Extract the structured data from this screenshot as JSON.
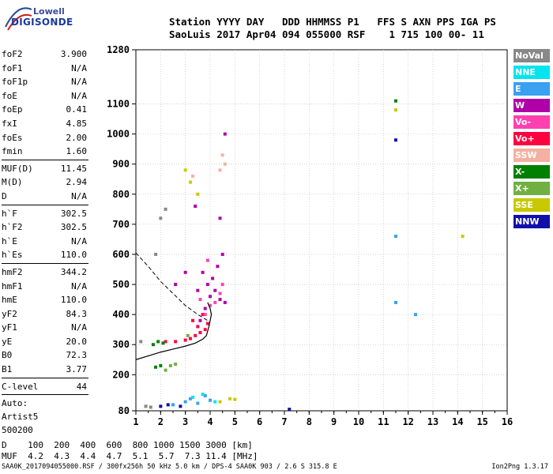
{
  "logo": {
    "line1": "Lowell",
    "line2": "DIGISONDE"
  },
  "header": {
    "line1": "Station YYYY DAY   DDD HHMMSS P1   FFS S AXN PPS IGA PS",
    "line2": "SaoLuis 2017 Apr04 094 055000 RSF    1 715 100 00- 11"
  },
  "params_group1": [
    {
      "label": "foF2",
      "value": "3.900"
    },
    {
      "label": "foF1",
      "value": "N/A"
    },
    {
      "label": "foF1p",
      "value": "N/A"
    },
    {
      "label": "foE",
      "value": "N/A"
    },
    {
      "label": "foEp",
      "value": "0.41"
    },
    {
      "label": "fxI",
      "value": "4.85"
    },
    {
      "label": "foEs",
      "value": "2.00"
    },
    {
      "label": "fmin",
      "value": "1.60"
    }
  ],
  "params_group2": [
    {
      "label": "MUF(D)",
      "value": "11.45"
    },
    {
      "label": "M(D)",
      "value": "2.94"
    },
    {
      "label": "D",
      "value": "N/A"
    }
  ],
  "params_group3": [
    {
      "label": "h`F",
      "value": "302.5"
    },
    {
      "label": "h`F2",
      "value": "302.5"
    },
    {
      "label": "h`E",
      "value": "N/A"
    },
    {
      "label": "h`Es",
      "value": "110.0"
    }
  ],
  "params_group4": [
    {
      "label": "hmF2",
      "value": "344.2"
    },
    {
      "label": "hmF1",
      "value": "N/A"
    },
    {
      "label": "hmE",
      "value": "110.0"
    },
    {
      "label": "yF2",
      "value": "84.3"
    },
    {
      "label": "yF1",
      "value": "N/A"
    },
    {
      "label": "yE",
      "value": "20.0"
    },
    {
      "label": "B0",
      "value": "72.3"
    },
    {
      "label": "B1",
      "value": "3.77"
    }
  ],
  "params_group5": [
    {
      "label": "C-level",
      "value": "44"
    }
  ],
  "auto": {
    "line1": "Auto:",
    "line2": "Artist5",
    "line3": "500200"
  },
  "legend": [
    {
      "label": "NoVal",
      "color": "#888888"
    },
    {
      "label": "NNE",
      "color": "#00e5ee"
    },
    {
      "label": "E",
      "color": "#3aa0f0"
    },
    {
      "label": "W",
      "color": "#b000a8"
    },
    {
      "label": "Vo-",
      "color": "#ff40b0"
    },
    {
      "label": "Vo+",
      "color": "#ff0040"
    },
    {
      "label": "SSW",
      "color": "#f4b0a0"
    },
    {
      "label": "X-",
      "color": "#008000"
    },
    {
      "label": "X+",
      "color": "#70b040"
    },
    {
      "label": "SSE",
      "color": "#c8c800"
    },
    {
      "label": "NNW",
      "color": "#1010a8"
    }
  ],
  "muf_table": {
    "line1": "D    100  200  400  600  800 1000 1500 3000 [km]",
    "line2": "MUF  4.2  4.3  4.4  4.7  5.1  5.7  7.3 11.4 [MHz]"
  },
  "footer": {
    "file": "SAA0K_2017094055000.RSF / 300fx256h 50 kHz 5.0 km / DPS-4 SAA0K 903 / 2.6 S 315.8 E",
    "version": "Ion2Png 1.3.17"
  },
  "chart_data": {
    "type": "scatter",
    "title": "",
    "xlabel": "",
    "ylabel": "",
    "xlim": [
      1,
      16
    ],
    "ylim": [
      80,
      1280
    ],
    "x_ticks": [
      "1",
      "2",
      "3",
      "4",
      "5",
      "6",
      "7",
      "8",
      "9",
      "10",
      "11",
      "12",
      "13",
      "14",
      "15",
      "16"
    ],
    "y_ticks": [
      "80",
      "200",
      "300",
      "400",
      "500",
      "600",
      "700",
      "800",
      "900",
      "1000",
      "1100",
      "1280"
    ],
    "grid": true,
    "series": [
      {
        "name": "Vo+",
        "color": "#ff0040",
        "points": [
          [
            3.2,
            320
          ],
          [
            3.4,
            330
          ],
          [
            3.6,
            340
          ],
          [
            3.8,
            350
          ],
          [
            3.9,
            370
          ],
          [
            3.5,
            360
          ],
          [
            3.0,
            315
          ],
          [
            2.6,
            310
          ],
          [
            2.2,
            310
          ],
          [
            3.7,
            400
          ],
          [
            3.3,
            380
          ]
        ]
      },
      {
        "name": "W",
        "color": "#b000a8",
        "points": [
          [
            3.6,
            380
          ],
          [
            3.8,
            420
          ],
          [
            4.0,
            460
          ],
          [
            4.2,
            480
          ],
          [
            4.4,
            450
          ],
          [
            4.6,
            440
          ],
          [
            3.9,
            500
          ],
          [
            4.1,
            520
          ],
          [
            4.3,
            560
          ],
          [
            4.5,
            600
          ],
          [
            3.5,
            480
          ],
          [
            3.7,
            540
          ],
          [
            4.6,
            1000
          ],
          [
            4.4,
            720
          ],
          [
            3.4,
            760
          ],
          [
            3.0,
            540
          ],
          [
            2.6,
            500
          ]
        ]
      },
      {
        "name": "Vo-",
        "color": "#ff40b0",
        "points": [
          [
            3.8,
            400
          ],
          [
            4.0,
            430
          ],
          [
            4.2,
            440
          ],
          [
            4.4,
            470
          ],
          [
            4.5,
            500
          ],
          [
            3.6,
            450
          ],
          [
            3.9,
            580
          ]
        ]
      },
      {
        "name": "SSW",
        "color": "#f4b0a0",
        "points": [
          [
            4.5,
            930
          ],
          [
            4.6,
            900
          ],
          [
            4.4,
            880
          ],
          [
            3.3,
            860
          ]
        ]
      },
      {
        "name": "X-",
        "color": "#008000",
        "points": [
          [
            1.7,
            300
          ],
          [
            1.9,
            310
          ],
          [
            2.1,
            305
          ],
          [
            2.0,
            230
          ],
          [
            1.8,
            225
          ],
          [
            11.5,
            1110
          ]
        ]
      },
      {
        "name": "X+",
        "color": "#70b040",
        "points": [
          [
            2.4,
            230
          ],
          [
            2.6,
            235
          ],
          [
            2.2,
            215
          ],
          [
            3.1,
            330
          ]
        ]
      },
      {
        "name": "SSE",
        "color": "#c8c800",
        "points": [
          [
            3.0,
            880
          ],
          [
            3.2,
            840
          ],
          [
            3.5,
            800
          ],
          [
            4.4,
            110
          ],
          [
            4.8,
            120
          ],
          [
            5.0,
            118
          ],
          [
            11.5,
            1080
          ],
          [
            14.2,
            660
          ]
        ]
      },
      {
        "name": "E",
        "color": "#3aa0f0",
        "points": [
          [
            2.5,
            100
          ],
          [
            3.0,
            110
          ],
          [
            3.5,
            105
          ],
          [
            4.0,
            115
          ],
          [
            3.8,
            130
          ],
          [
            3.2,
            120
          ],
          [
            11.5,
            440
          ],
          [
            12.3,
            400
          ],
          [
            11.5,
            660
          ]
        ]
      },
      {
        "name": "NNE",
        "color": "#00e5ee",
        "points": [
          [
            3.3,
            125
          ],
          [
            3.7,
            135
          ],
          [
            4.2,
            110
          ]
        ]
      },
      {
        "name": "NNW",
        "color": "#1010a8",
        "points": [
          [
            2.0,
            95
          ],
          [
            2.3,
            100
          ],
          [
            2.8,
            95
          ],
          [
            7.2,
            85
          ],
          [
            11.5,
            980
          ]
        ]
      },
      {
        "name": "NoVal",
        "color": "#888888",
        "points": [
          [
            1.4,
            95
          ],
          [
            1.6,
            92
          ],
          [
            1.2,
            310
          ],
          [
            1.8,
            600
          ],
          [
            2.0,
            720
          ],
          [
            2.2,
            750
          ]
        ]
      }
    ],
    "profile_line": {
      "x": [
        1.0,
        1.6,
        2.0,
        2.5,
        3.0,
        3.4,
        3.7,
        3.85,
        3.9,
        3.95,
        4.0,
        4.05,
        4.0,
        3.9
      ],
      "y": [
        250,
        265,
        275,
        285,
        295,
        305,
        318,
        330,
        345,
        360,
        380,
        400,
        420,
        440
      ]
    },
    "dashed_line": {
      "x": [
        1.0,
        1.5,
        2.0,
        2.5,
        3.0,
        3.5,
        3.9
      ],
      "y": [
        605,
        560,
        510,
        470,
        430,
        400,
        380
      ]
    }
  }
}
